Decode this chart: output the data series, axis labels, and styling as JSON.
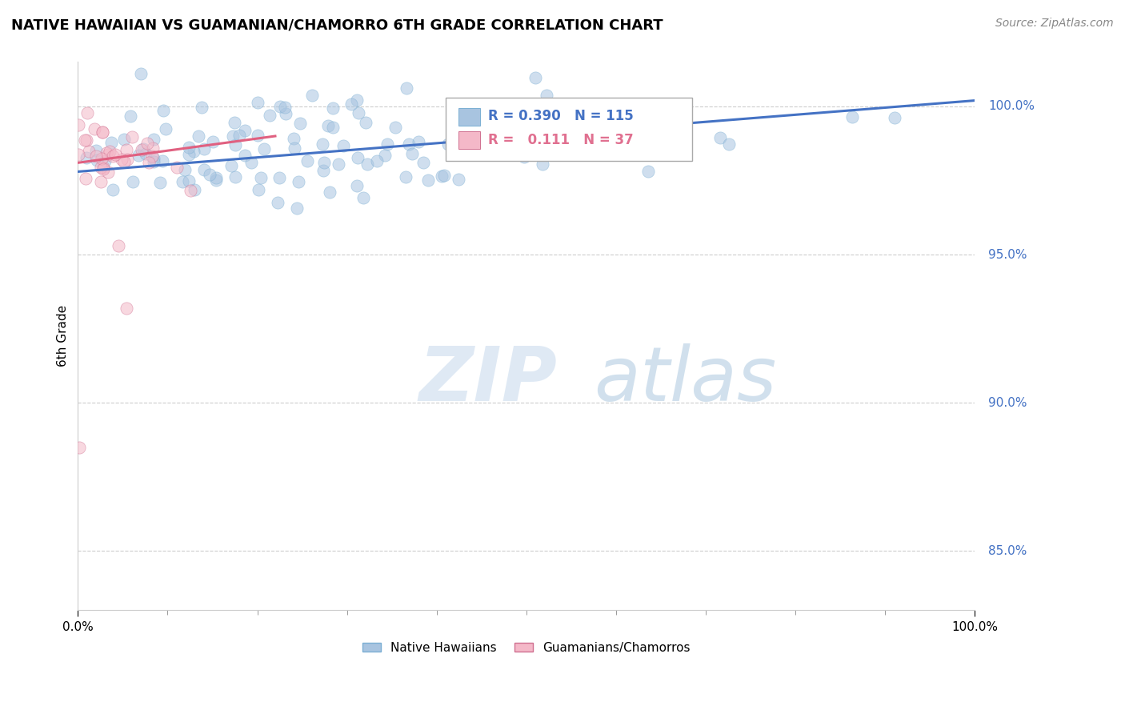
{
  "title": "NATIVE HAWAIIAN VS GUAMANIAN/CHAMORRO 6TH GRADE CORRELATION CHART",
  "source_text": "Source: ZipAtlas.com",
  "ylabel": "6th Grade",
  "xlim_pct": [
    0.0,
    100.0
  ],
  "ylim_pct": [
    83.0,
    101.5
  ],
  "y_ticks_pct": [
    85.0,
    90.0,
    95.0,
    100.0
  ],
  "x_ticks_pct": [
    0.0,
    100.0
  ],
  "legend_labels": [
    "Native Hawaiians",
    "Guamanians/Chamorros"
  ],
  "legend_colors": [
    "#a8c4e0",
    "#f4b8c8"
  ],
  "legend_edge_colors": [
    "#7bafd4",
    "#d07090"
  ],
  "corr_box": {
    "R_blue": 0.39,
    "N_blue": 115,
    "R_pink": 0.111,
    "N_pink": 37,
    "text_color_blue": "#4472c4",
    "text_color_pink": "#e07090"
  },
  "blue_line_pct": {
    "x0": 0.0,
    "x1": 100.0,
    "y0": 97.8,
    "y1": 100.2
  },
  "pink_line_pct": {
    "x0": 0.0,
    "x1": 22.0,
    "y0": 98.1,
    "y1": 99.0
  },
  "background_color": "#ffffff",
  "scatter_alpha": 0.55,
  "scatter_size": 120,
  "grid_color": "#cccccc",
  "watermark_color": "#ccddf0",
  "title_fontsize": 13,
  "source_fontsize": 10,
  "axis_label_fontsize": 11,
  "tick_fontsize": 11,
  "corr_fontsize": 12
}
